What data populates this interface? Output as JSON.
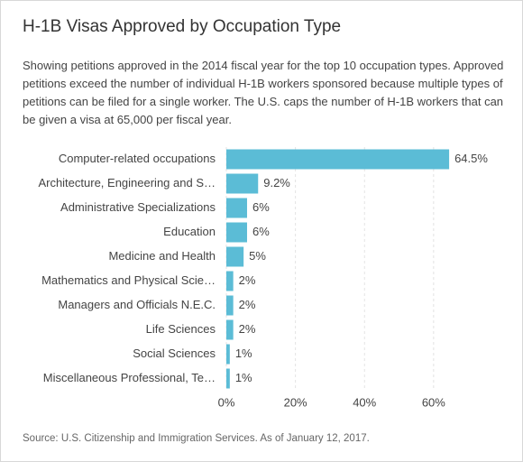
{
  "chart_data": {
    "type": "hbar",
    "title": "H-1B Visas Approved by Occupation Type",
    "subtitle": "Showing petitions approved in the 2014 fiscal year for the top 10 occupation types. Approved petitions exceed the number of individual H-1B workers sponsored because multiple types of petitions can be filed for a single worker. The U.S. caps the number of H-1B workers that can be given a visa at 65,000 per fiscal year.",
    "source": "Source: U.S. Citizenship and Immigration Services. As of January 12, 2017.",
    "categories": [
      "Computer-related occupations",
      "Architecture, Engineering and S…",
      "Administrative Specializations",
      "Education",
      "Medicine and Health",
      "Mathematics and Physical Scie…",
      "Managers and Officials N.E.C.",
      "Life Sciences",
      "Social Sciences",
      "Miscellaneous Professional, Te…"
    ],
    "values": [
      64.5,
      9.2,
      6,
      6,
      5,
      2,
      2,
      2,
      1,
      1
    ],
    "value_labels": [
      "64.5%",
      "9.2%",
      "6%",
      "6%",
      "5%",
      "2%",
      "2%",
      "2%",
      "1%",
      "1%"
    ],
    "color": "#5bbcd6",
    "xlim": [
      0,
      65
    ],
    "xticks": [
      {
        "value": 0,
        "label": "0%"
      },
      {
        "value": 20,
        "label": "20%"
      },
      {
        "value": 40,
        "label": "40%"
      },
      {
        "value": 60,
        "label": "60%"
      }
    ],
    "grid": true
  }
}
